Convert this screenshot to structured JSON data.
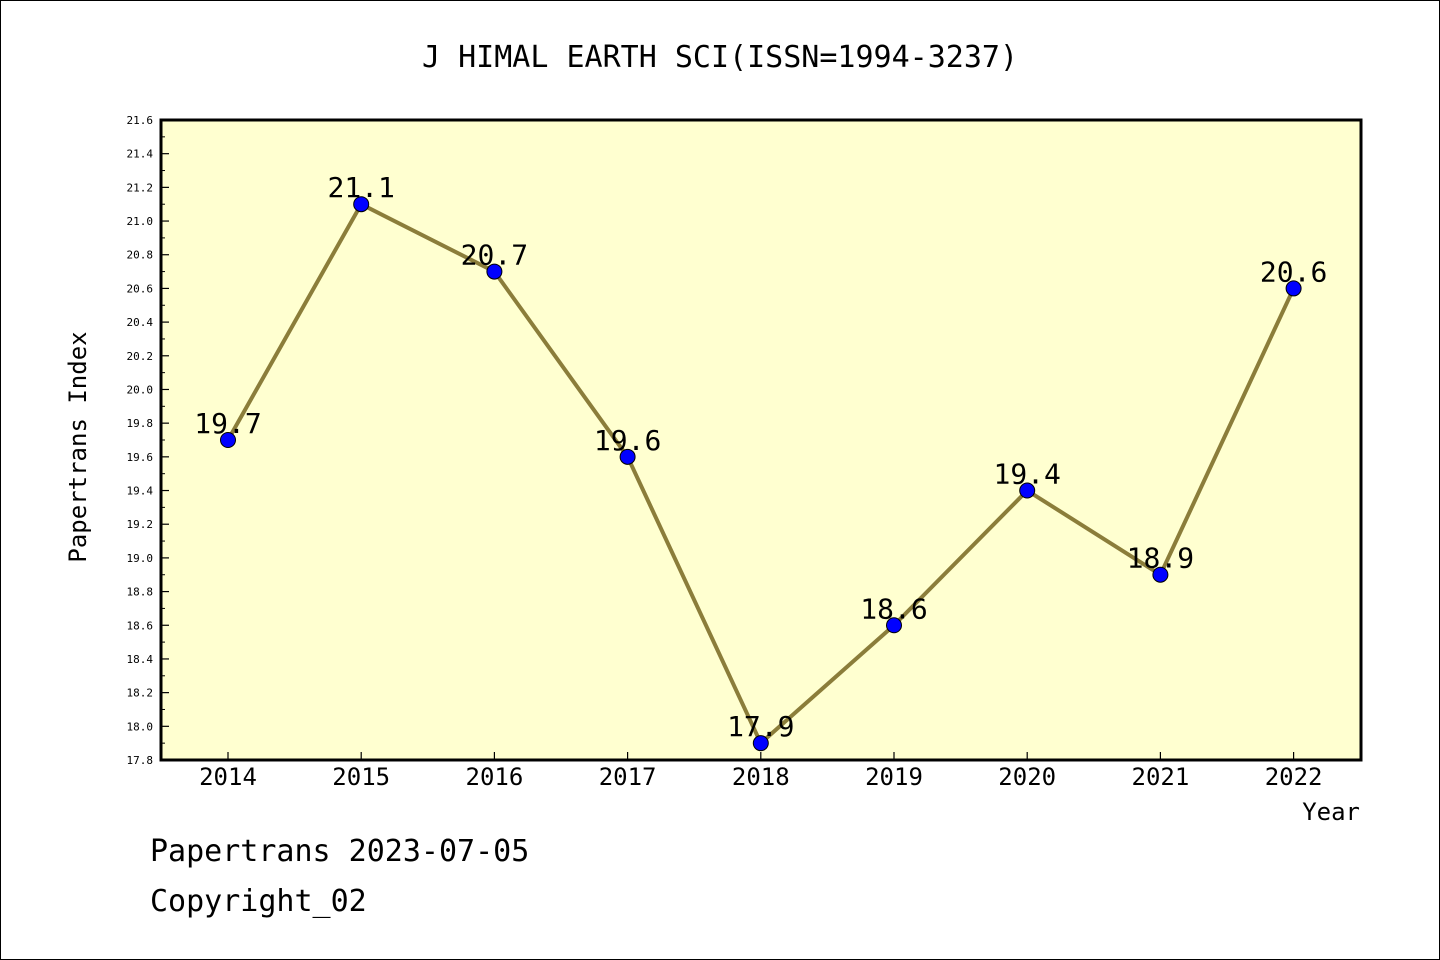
{
  "chart_data": {
    "type": "line",
    "title": "J HIMAL EARTH SCI(ISSN=1994-3237)",
    "xlabel": "Year",
    "ylabel": "Papertrans Index",
    "categories": [
      "2014",
      "2015",
      "2016",
      "2017",
      "2018",
      "2019",
      "2020",
      "2021",
      "2022"
    ],
    "series": [
      {
        "values": [
          19.7,
          21.1,
          20.7,
          19.6,
          17.9,
          18.6,
          19.4,
          18.9,
          20.6
        ],
        "labels": [
          "19.7",
          "21.1",
          "20.7",
          "19.6",
          "17.9",
          "18.6",
          "19.4",
          "18.9",
          "20.6"
        ]
      }
    ],
    "ylim": [
      17.8,
      21.6
    ],
    "yticks": [
      "17.8",
      "18.0",
      "18.2",
      "18.4",
      "18.6",
      "18.8",
      "19.0",
      "19.2",
      "19.4",
      "19.6",
      "19.8",
      "20.0",
      "20.2",
      "20.4",
      "20.6",
      "20.8",
      "21.0",
      "21.2",
      "21.4",
      "21.6"
    ],
    "grid": false,
    "colors": {
      "plot_background": "#ffffd0",
      "line": "#8b7d3a",
      "marker": "#0000ff"
    }
  },
  "footer": {
    "line1": "Papertrans 2023-07-05",
    "line2": "Copyright_02"
  }
}
